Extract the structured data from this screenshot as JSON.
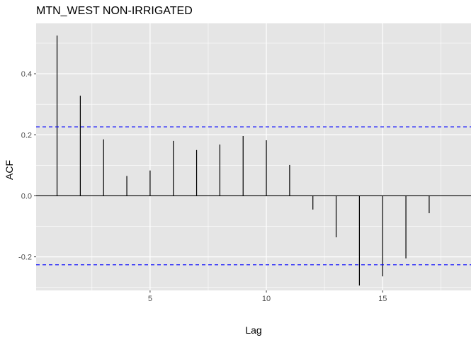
{
  "chart_data": {
    "type": "bar",
    "title": "MTN_WEST   NON-IRRIGATED",
    "xlabel": "Lag",
    "ylabel": "ACF",
    "xlim": [
      0.1,
      18.8
    ],
    "ylim": [
      -0.31,
      0.565
    ],
    "x_ticks": [
      5,
      10,
      15
    ],
    "x_tick_labels": [
      "5",
      "10",
      "15"
    ],
    "y_ticks": [
      -0.2,
      0.0,
      0.2,
      0.4
    ],
    "y_tick_labels": [
      "-0.2",
      "0.0",
      "0.2",
      "0.4"
    ],
    "lags": [
      1,
      2,
      3,
      4,
      5,
      6,
      7,
      8,
      9,
      10,
      11,
      12,
      13,
      14,
      15,
      16,
      17
    ],
    "acf": [
      0.525,
      0.328,
      0.185,
      0.065,
      0.083,
      0.18,
      0.15,
      0.168,
      0.196,
      0.182,
      0.101,
      -0.045,
      -0.136,
      -0.294,
      -0.264,
      -0.205,
      -0.057
    ],
    "confidence_bound": 0.226,
    "grid": true,
    "colors": {
      "panel_background": "#e5e5e5",
      "grid": "#ffffff",
      "bar": "#000000",
      "confidence_line": "#0000ff"
    }
  }
}
